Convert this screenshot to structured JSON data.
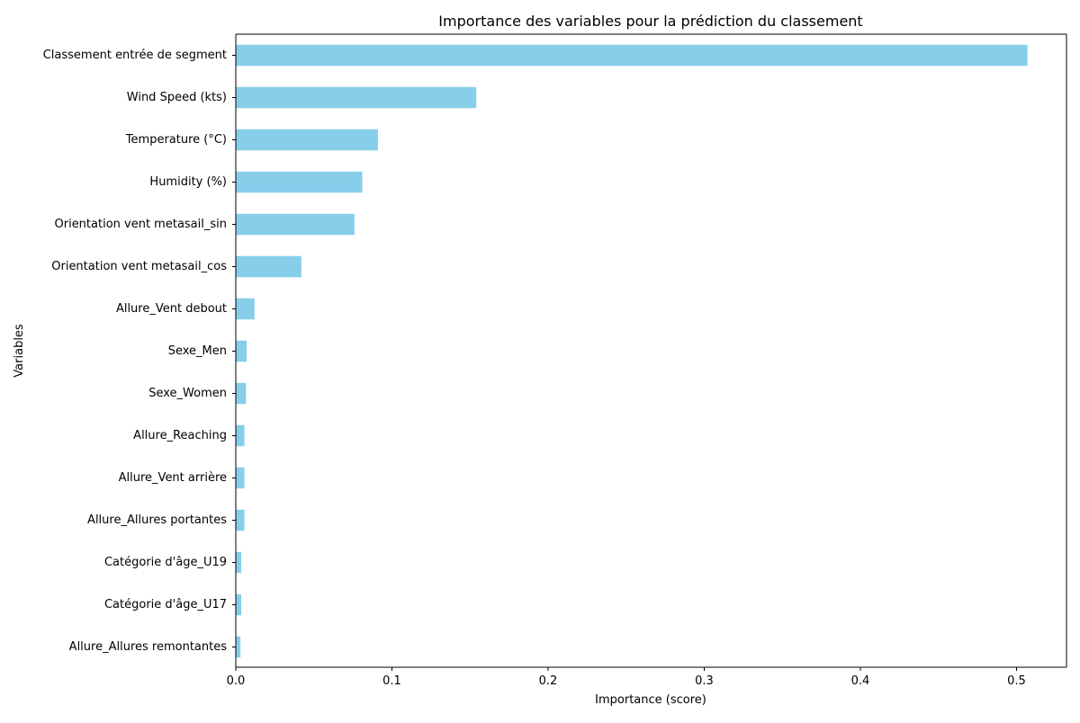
{
  "chart_data": {
    "type": "bar",
    "orientation": "horizontal",
    "title": "Importance des variables pour la prédiction du classement",
    "xlabel": "Importance (score)",
    "ylabel": "Variables",
    "xlim": [
      0,
      0.532
    ],
    "xticks": [
      0.0,
      0.1,
      0.2,
      0.3,
      0.4,
      0.5
    ],
    "xtick_labels": [
      "0.0",
      "0.1",
      "0.2",
      "0.3",
      "0.4",
      "0.5"
    ],
    "grid": false,
    "legend": "none",
    "bar_color": "#87ceeb",
    "categories": [
      "Classement entrée de segment",
      "Wind Speed (kts)",
      "Temperature (°C)",
      "Humidity (%)",
      "Orientation vent metasail_sin",
      "Orientation vent metasail_cos",
      "Allure_Vent debout",
      "Sexe_Men",
      "Sexe_Women",
      "Allure_Reaching",
      "Allure_Vent arrière",
      "Allure_Allures portantes",
      "Catégorie d'âge_U19",
      "Catégorie d'âge_U17",
      "Allure_Allures remontantes"
    ],
    "values": [
      0.507,
      0.154,
      0.091,
      0.081,
      0.076,
      0.042,
      0.012,
      0.007,
      0.0065,
      0.0055,
      0.0055,
      0.0055,
      0.0035,
      0.0035,
      0.003
    ]
  }
}
